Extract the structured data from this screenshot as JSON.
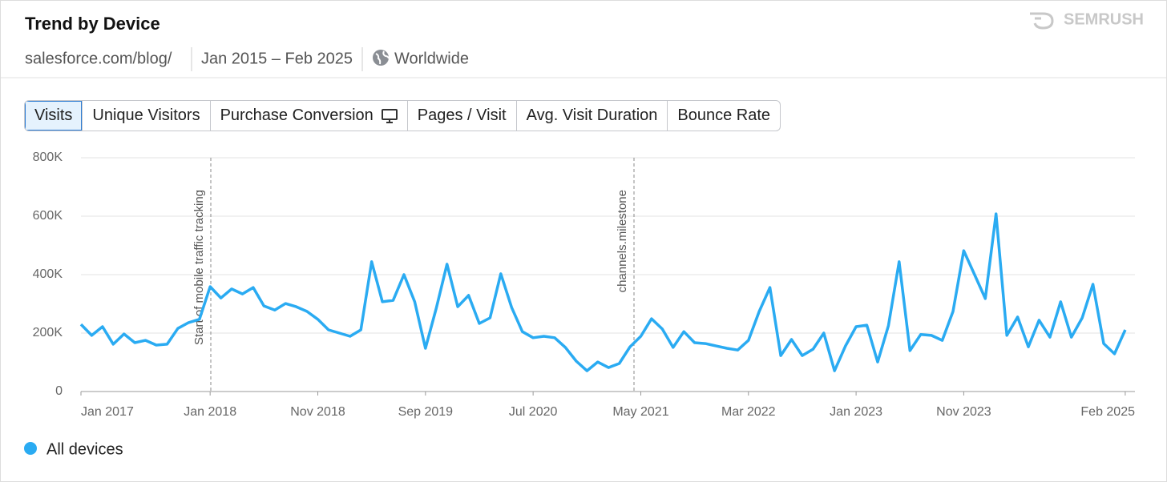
{
  "header": {
    "title": "Trend by Device",
    "domain": "salesforce.com/blog/",
    "period": "Jan 2015 – Feb 2025",
    "region": "Worldwide",
    "brand": "SEMRUSH"
  },
  "tabs": [
    "Visits",
    "Unique Visitors",
    "Purchase Conversion",
    "Pages / Visit",
    "Avg. Visit Duration",
    "Bounce Rate"
  ],
  "chart_data": {
    "type": "line",
    "categories": [
      "Jan 2017",
      null,
      null,
      null,
      null,
      null,
      null,
      null,
      null,
      null,
      null,
      null,
      "Jan 2018",
      null,
      null,
      null,
      null,
      null,
      null,
      null,
      null,
      null,
      "Nov 2018",
      null,
      null,
      null,
      null,
      null,
      null,
      null,
      null,
      null,
      "Sep 2019",
      null,
      null,
      null,
      null,
      null,
      null,
      null,
      null,
      null,
      "Jul 2020",
      null,
      null,
      null,
      null,
      null,
      null,
      null,
      null,
      null,
      "May 2021",
      null,
      null,
      null,
      null,
      null,
      null,
      null,
      null,
      null,
      "Mar 2022",
      null,
      null,
      null,
      null,
      null,
      null,
      null,
      null,
      null,
      "Jan 2023",
      null,
      null,
      null,
      null,
      null,
      null,
      null,
      null,
      null,
      "Nov 2023",
      null,
      null,
      null,
      null,
      null,
      null,
      null,
      null,
      null,
      null,
      null,
      null,
      null,
      null,
      "Feb 2025"
    ],
    "series": [
      {
        "name": "All devices",
        "color": "#2aabf2",
        "values": [
          230000,
          192000,
          222000,
          162000,
          197000,
          167000,
          175000,
          159000,
          162000,
          216000,
          236000,
          247000,
          359000,
          320000,
          351000,
          334000,
          356000,
          293000,
          279000,
          301000,
          290000,
          274000,
          247000,
          211000,
          200000,
          189000,
          211000,
          444000,
          307000,
          312000,
          400000,
          307000,
          148000,
          285000,
          436000,
          290000,
          329000,
          233000,
          252000,
          403000,
          288000,
          205000,
          184000,
          189000,
          184000,
          151000,
          104000,
          71000,
          101000,
          82000,
          96000,
          153000,
          189000,
          249000,
          214000,
          151000,
          205000,
          167000,
          164000,
          156000,
          148000,
          142000,
          175000,
          274000,
          356000,
          123000,
          178000,
          123000,
          145000,
          200000,
          71000,
          155000,
          222000,
          227000,
          101000,
          225000,
          444000,
          140000,
          195000,
          192000,
          175000,
          274000,
          482000,
          400000,
          318000,
          608000,
          192000,
          255000,
          153000,
          244000,
          186000,
          307000,
          186000,
          252000,
          367000,
          164000,
          129000,
          211000
        ]
      }
    ],
    "ylim": [
      0,
      800000
    ],
    "yticks": [
      0,
      {
        "value": 200000,
        "label": "200K"
      },
      {
        "value": 400000,
        "label": "400K"
      },
      {
        "value": 600000,
        "label": "600K"
      },
      {
        "value": 800000,
        "label": "800K"
      }
    ],
    "grid": true,
    "annotations": [
      "Start of mobile traffic tracking",
      "channels.milestone"
    ]
  }
}
